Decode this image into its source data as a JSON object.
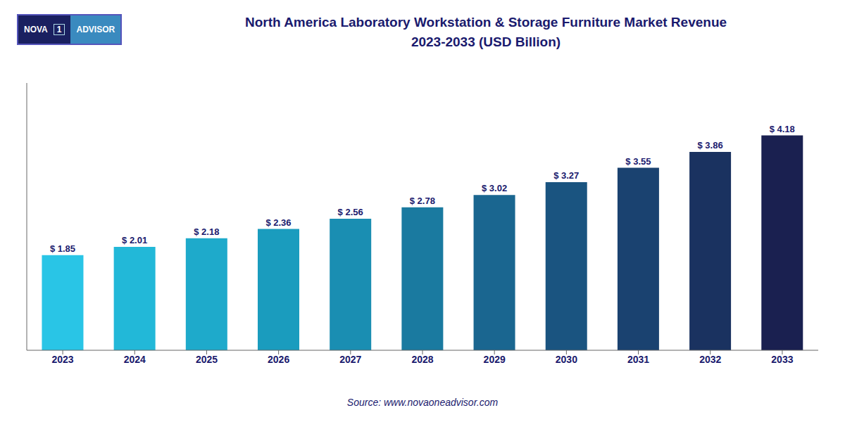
{
  "chart_data": {
    "type": "bar",
    "title": "North America Laboratory Workstation & Storage Furniture Market Revenue",
    "subtitle": "2023-2033 (USD Billion)",
    "categories": [
      "2023",
      "2024",
      "2025",
      "2026",
      "2027",
      "2028",
      "2029",
      "2030",
      "2031",
      "2032",
      "2033"
    ],
    "values": [
      1.85,
      2.01,
      2.18,
      2.36,
      2.56,
      2.78,
      3.02,
      3.27,
      3.55,
      3.86,
      4.18
    ],
    "value_labels": [
      "$ 1.85",
      "$ 2.01",
      "$ 2.18",
      "$ 2.36",
      "$ 2.56",
      "$ 2.78",
      "$ 3.02",
      "$ 3.27",
      "$ 3.55",
      "$ 3.86",
      "$ 4.18"
    ],
    "colors": [
      "#29c5e6",
      "#22b8d8",
      "#1eaacb",
      "#1a9cbe",
      "#1a8eb2",
      "#1a7aa0",
      "#1a6690",
      "#1a5480",
      "#1a4270",
      "#1a3260",
      "#1a2050"
    ],
    "ylim": [
      0,
      5.2
    ],
    "grid": false,
    "data_labels": true,
    "tick_labels": "x",
    "annotations": [
      "Source: www.novaoneadvisor.com",
      "NOVA",
      "1",
      "ADVISOR"
    ]
  }
}
